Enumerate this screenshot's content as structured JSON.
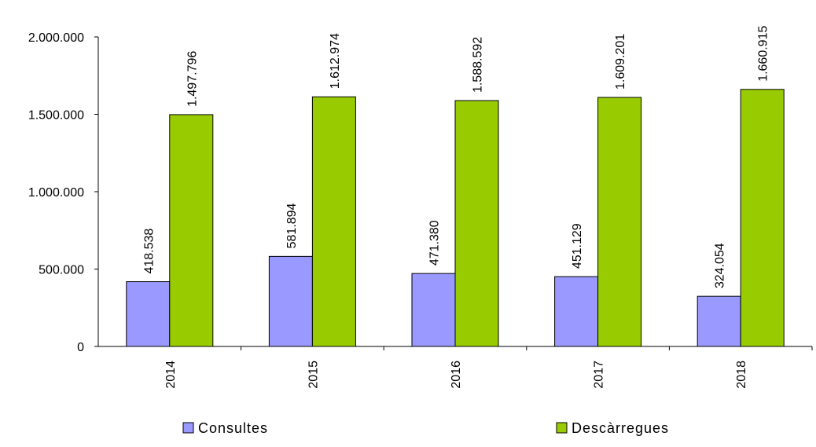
{
  "chart_data": {
    "type": "bar",
    "categories": [
      "2014",
      "2015",
      "2016",
      "2017",
      "2018"
    ],
    "series": [
      {
        "name": "Consultes",
        "values": [
          418538,
          581894,
          471380,
          451129,
          324054
        ],
        "labels": [
          "418.538",
          "581.894",
          "471.380",
          "451.129",
          "324.054"
        ],
        "color": "#9999FF"
      },
      {
        "name": "Descàrregues",
        "values": [
          1497796,
          1612974,
          1588592,
          1609201,
          1660915
        ],
        "labels": [
          "1.497.796",
          "1.612.974",
          "1.588.592",
          "1.609.201",
          "1.660.915"
        ],
        "color": "#99CC00"
      }
    ],
    "title": "",
    "xlabel": "",
    "ylabel": "",
    "ylim": [
      0,
      2000000
    ],
    "yticks": [
      {
        "value": 0,
        "label": "0"
      },
      {
        "value": 500000,
        "label": "500.000"
      },
      {
        "value": 1000000,
        "label": "1.000.000"
      },
      {
        "value": 1500000,
        "label": "1.500.000"
      },
      {
        "value": 2000000,
        "label": "2.000.000"
      }
    ],
    "grid": false,
    "legend_position": "bottom"
  }
}
